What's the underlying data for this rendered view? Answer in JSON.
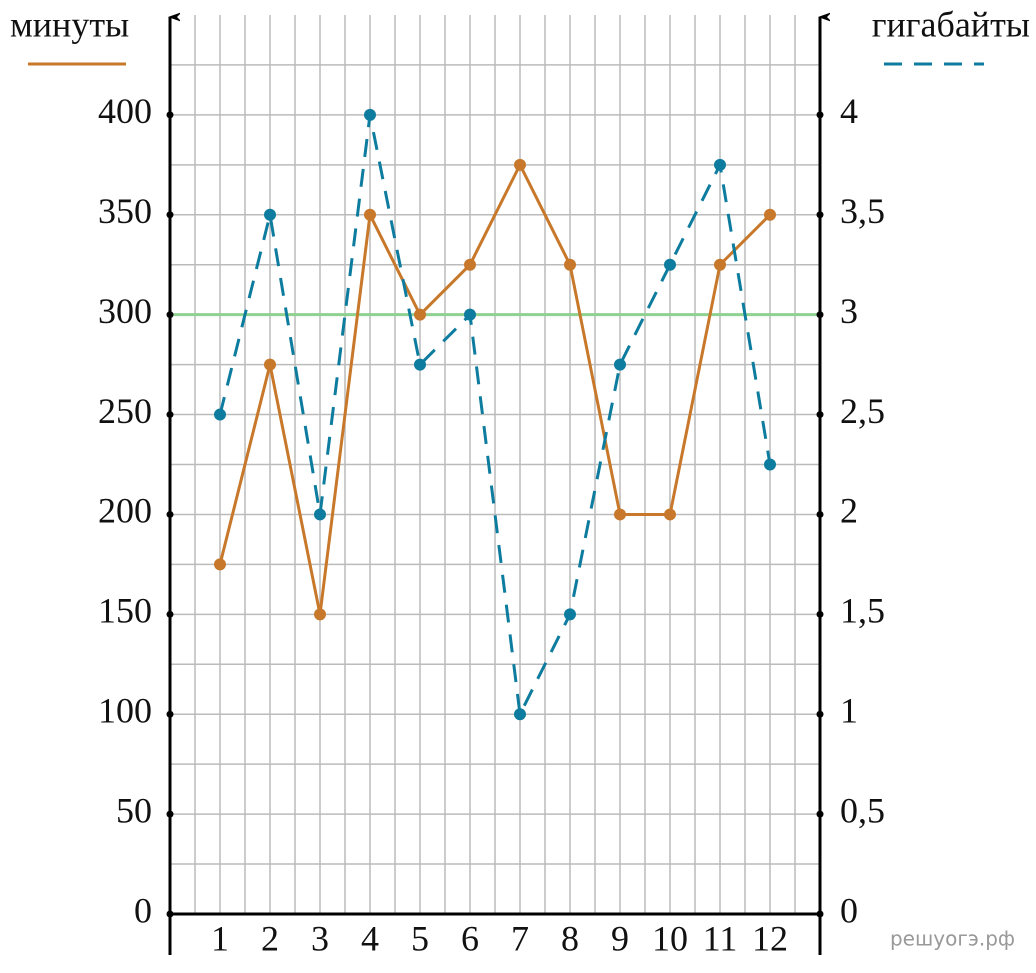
{
  "chart_data": {
    "type": "line",
    "categories": [
      "1",
      "2",
      "3",
      "4",
      "5",
      "6",
      "7",
      "8",
      "9",
      "10",
      "11",
      "12"
    ],
    "series": [
      {
        "name": "минуты",
        "color": "#c8782a",
        "dash": false,
        "values": [
          175,
          275,
          150,
          350,
          300,
          325,
          375,
          325,
          200,
          200,
          325,
          350
        ]
      },
      {
        "name": "гигабайты",
        "color": "#0e7c9e",
        "dash": true,
        "axis": "y2",
        "values": [
          2.5,
          3.5,
          2,
          4,
          2.75,
          3,
          1,
          1.5,
          2.75,
          3.25,
          3.75,
          2.25
        ]
      }
    ],
    "ylim": [
      0,
      450
    ],
    "yticks": [
      0,
      50,
      100,
      150,
      200,
      250,
      300,
      350,
      400
    ],
    "y2lim": [
      0,
      4.5
    ],
    "y2ticks": [
      0,
      {
        "value": 0.5,
        "label": "0,5"
      },
      1,
      {
        "value": 1.5,
        "label": "1,5"
      },
      2,
      {
        "value": 2.5,
        "label": "2,5"
      },
      3,
      {
        "value": 3.5,
        "label": "3,5"
      },
      4
    ],
    "reference_line": {
      "value": 300,
      "color": "#8fd18f"
    },
    "grid": true,
    "watermark": "решуогэ.рф"
  }
}
